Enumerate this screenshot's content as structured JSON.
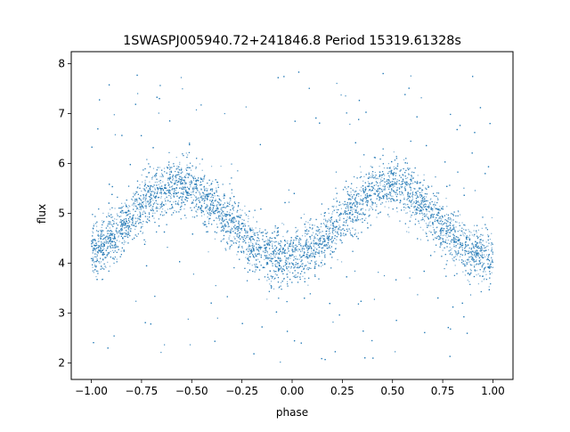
{
  "colors": {
    "points": "#1f77b4",
    "axes": "#000000",
    "background": "#ffffff"
  },
  "chart_data": {
    "type": "scatter",
    "title": "1SWASPJ005940.72+241846.8 Period 15319.61328s",
    "xlabel": "phase",
    "ylabel": "flux",
    "xlim": [
      -1.1,
      1.1
    ],
    "ylim": [
      1.67,
      8.24
    ],
    "grid": false,
    "legend": "none",
    "x_ticks": [
      -1.0,
      -0.75,
      -0.5,
      -0.25,
      0.0,
      0.25,
      0.5,
      0.75,
      1.0
    ],
    "x_tick_labels": [
      "−1.00",
      "−0.75",
      "−0.50",
      "−0.25",
      "0.00",
      "0.25",
      "0.50",
      "0.75",
      "1.00"
    ],
    "y_ticks": [
      2,
      3,
      4,
      5,
      6,
      7,
      8
    ],
    "y_tick_labels": [
      "2",
      "3",
      "4",
      "5",
      "6",
      "7",
      "8"
    ],
    "series": [
      {
        "marker": "point",
        "phase_range": [
          -1.0,
          1.0
        ],
        "trend": {
          "x": [
            -1.0,
            -0.9,
            -0.8,
            -0.7,
            -0.6,
            -0.5,
            -0.4,
            -0.3,
            -0.2,
            -0.1,
            0.0,
            0.1,
            0.2,
            0.3,
            0.4,
            0.5,
            0.6,
            0.7,
            0.8,
            0.9,
            1.0
          ],
          "y": [
            4.2,
            4.5,
            4.95,
            5.35,
            5.55,
            5.5,
            5.2,
            4.8,
            4.35,
            4.15,
            4.1,
            4.25,
            4.65,
            5.15,
            5.5,
            5.55,
            5.35,
            4.95,
            4.5,
            4.2,
            4.15
          ]
        },
        "band_spread": 0.85
      }
    ]
  }
}
